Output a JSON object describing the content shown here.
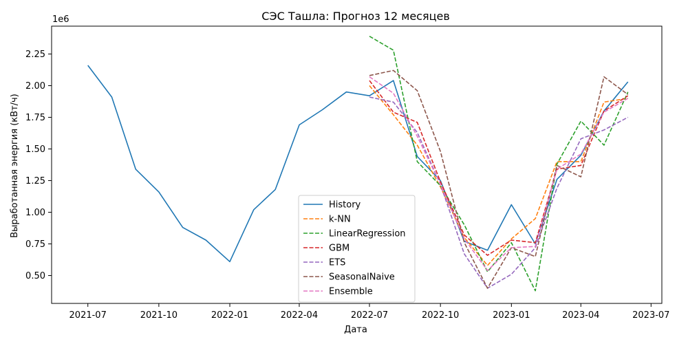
{
  "chart_data": {
    "type": "line",
    "title": "СЭС Ташла: Прогноз 12 месяцев",
    "xlabel": "Дата",
    "ylabel": "Выработанная энергия (кВт/ч)",
    "y_offset_label": "1e6",
    "ylim": [
      0.28,
      2.47
    ],
    "y_ticks": [
      0.5,
      0.75,
      1.0,
      1.25,
      1.5,
      1.75,
      2.0,
      2.25
    ],
    "y_tick_labels": [
      "0.50",
      "0.75",
      "1.00",
      "1.25",
      "1.50",
      "1.75",
      "2.00",
      "2.25"
    ],
    "x_ticks": [
      "2021-07-01",
      "2021-10-01",
      "2022-01-01",
      "2022-04-01",
      "2022-07-01",
      "2022-10-01",
      "2023-01-01",
      "2023-04-01",
      "2023-07-01"
    ],
    "x_tick_labels": [
      "2021-07",
      "2021-10",
      "2022-01",
      "2022-04",
      "2022-07",
      "2022-10",
      "2023-01",
      "2023-04",
      "2023-07"
    ],
    "x_range": [
      "2021-05-15",
      "2023-07-15"
    ],
    "legend_position": "lower-center",
    "series": [
      {
        "name": "History",
        "color": "#1f77b4",
        "dashed": false,
        "x": [
          "2021-07-01",
          "2021-08-01",
          "2021-09-01",
          "2021-10-01",
          "2021-11-01",
          "2021-12-01",
          "2022-01-01",
          "2022-02-01",
          "2022-03-01",
          "2022-04-01",
          "2022-05-01",
          "2022-06-01",
          "2022-07-01",
          "2022-08-01",
          "2022-09-01",
          "2022-10-01",
          "2022-11-01",
          "2022-12-01",
          "2023-01-01",
          "2023-02-01",
          "2023-03-01",
          "2023-04-01",
          "2023-05-01",
          "2023-06-01"
        ],
        "values": [
          2.16,
          1.91,
          1.34,
          1.16,
          0.88,
          0.78,
          0.61,
          1.02,
          1.18,
          1.69,
          1.81,
          1.95,
          1.92,
          2.04,
          1.44,
          1.25,
          0.77,
          0.7,
          1.06,
          0.75,
          1.26,
          1.45,
          1.8,
          2.03
        ]
      },
      {
        "name": "k-NN",
        "color": "#ff7f0e",
        "dashed": true,
        "x": [
          "2022-07-01",
          "2022-08-01",
          "2022-09-01",
          "2022-10-01",
          "2022-11-01",
          "2022-12-01",
          "2023-01-01",
          "2023-02-01",
          "2023-03-01",
          "2023-04-01",
          "2023-05-01",
          "2023-06-01"
        ],
        "values": [
          2.0,
          1.77,
          1.53,
          1.2,
          0.8,
          0.58,
          0.79,
          0.95,
          1.4,
          1.4,
          1.87,
          1.9
        ]
      },
      {
        "name": "LinearRegression",
        "color": "#2ca02c",
        "dashed": true,
        "x": [
          "2022-07-01",
          "2022-08-01",
          "2022-09-01",
          "2022-10-01",
          "2022-11-01",
          "2022-12-01",
          "2023-01-01",
          "2023-02-01",
          "2023-03-01",
          "2023-04-01",
          "2023-05-01",
          "2023-06-01"
        ],
        "values": [
          2.39,
          2.28,
          1.4,
          1.21,
          0.9,
          0.53,
          0.76,
          0.38,
          1.38,
          1.72,
          1.53,
          1.95
        ]
      },
      {
        "name": "GBM",
        "color": "#d62728",
        "dashed": true,
        "x": [
          "2022-07-01",
          "2022-08-01",
          "2022-09-01",
          "2022-10-01",
          "2022-11-01",
          "2022-12-01",
          "2023-01-01",
          "2023-02-01",
          "2023-03-01",
          "2023-04-01",
          "2023-05-01",
          "2023-06-01"
        ],
        "values": [
          2.04,
          1.79,
          1.71,
          1.24,
          0.82,
          0.66,
          0.78,
          0.76,
          1.34,
          1.37,
          1.8,
          1.92
        ]
      },
      {
        "name": "ETS",
        "color": "#9467bd",
        "dashed": true,
        "x": [
          "2022-07-01",
          "2022-08-01",
          "2022-09-01",
          "2022-10-01",
          "2022-11-01",
          "2022-12-01",
          "2023-01-01",
          "2023-02-01",
          "2023-03-01",
          "2023-04-01",
          "2023-05-01",
          "2023-06-01"
        ],
        "values": [
          1.91,
          1.87,
          1.63,
          1.22,
          0.67,
          0.4,
          0.51,
          0.72,
          1.19,
          1.58,
          1.65,
          1.75
        ]
      },
      {
        "name": "SeasonalNaive",
        "color": "#8c564b",
        "dashed": true,
        "x": [
          "2022-07-01",
          "2022-08-01",
          "2022-09-01",
          "2022-10-01",
          "2022-11-01",
          "2022-12-01",
          "2023-01-01",
          "2023-02-01",
          "2023-03-01",
          "2023-04-01",
          "2023-05-01",
          "2023-06-01"
        ],
        "values": [
          2.08,
          2.12,
          1.96,
          1.48,
          0.76,
          0.4,
          0.72,
          0.65,
          1.37,
          1.28,
          2.07,
          1.93
        ]
      },
      {
        "name": "Ensemble",
        "color": "#e377c2",
        "dashed": true,
        "x": [
          "2022-07-01",
          "2022-08-01",
          "2022-09-01",
          "2022-10-01",
          "2022-11-01",
          "2022-12-01",
          "2023-01-01",
          "2023-02-01",
          "2023-03-01",
          "2023-04-01",
          "2023-05-01",
          "2023-06-01"
        ],
        "values": [
          2.07,
          1.94,
          1.6,
          1.22,
          0.79,
          0.54,
          0.72,
          0.73,
          1.34,
          1.46,
          1.79,
          1.9
        ]
      }
    ]
  }
}
